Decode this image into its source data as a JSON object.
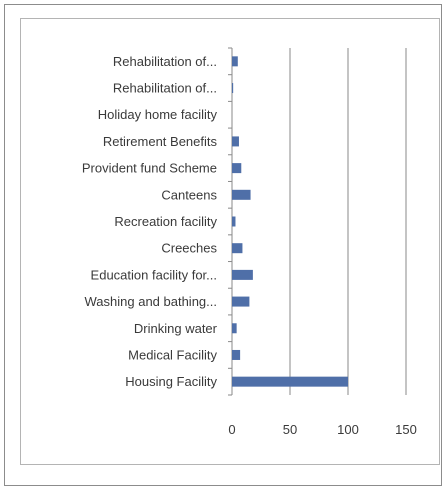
{
  "chart_data": {
    "type": "bar",
    "orientation": "horizontal",
    "categories": [
      "Housing Facility",
      "Medical Facility",
      "Drinking water",
      "Washing and bathing...",
      "Education facility for...",
      "Creeches",
      "Recreation facility",
      "Canteens",
      "Provident fund Scheme",
      "Retirement Benefits",
      "Holiday home facility",
      "Rehabilitation of...",
      "Rehabilitation of..."
    ],
    "values": [
      100,
      7,
      4,
      15,
      18,
      9,
      3,
      16,
      8,
      6,
      0,
      1,
      5
    ],
    "xlim": [
      0,
      150
    ],
    "xticks": [
      "0",
      "50",
      "100",
      "150"
    ],
    "grid": "vertical",
    "bar_color": "#4f6fa8",
    "title": "",
    "xlabel": "",
    "ylabel": ""
  }
}
